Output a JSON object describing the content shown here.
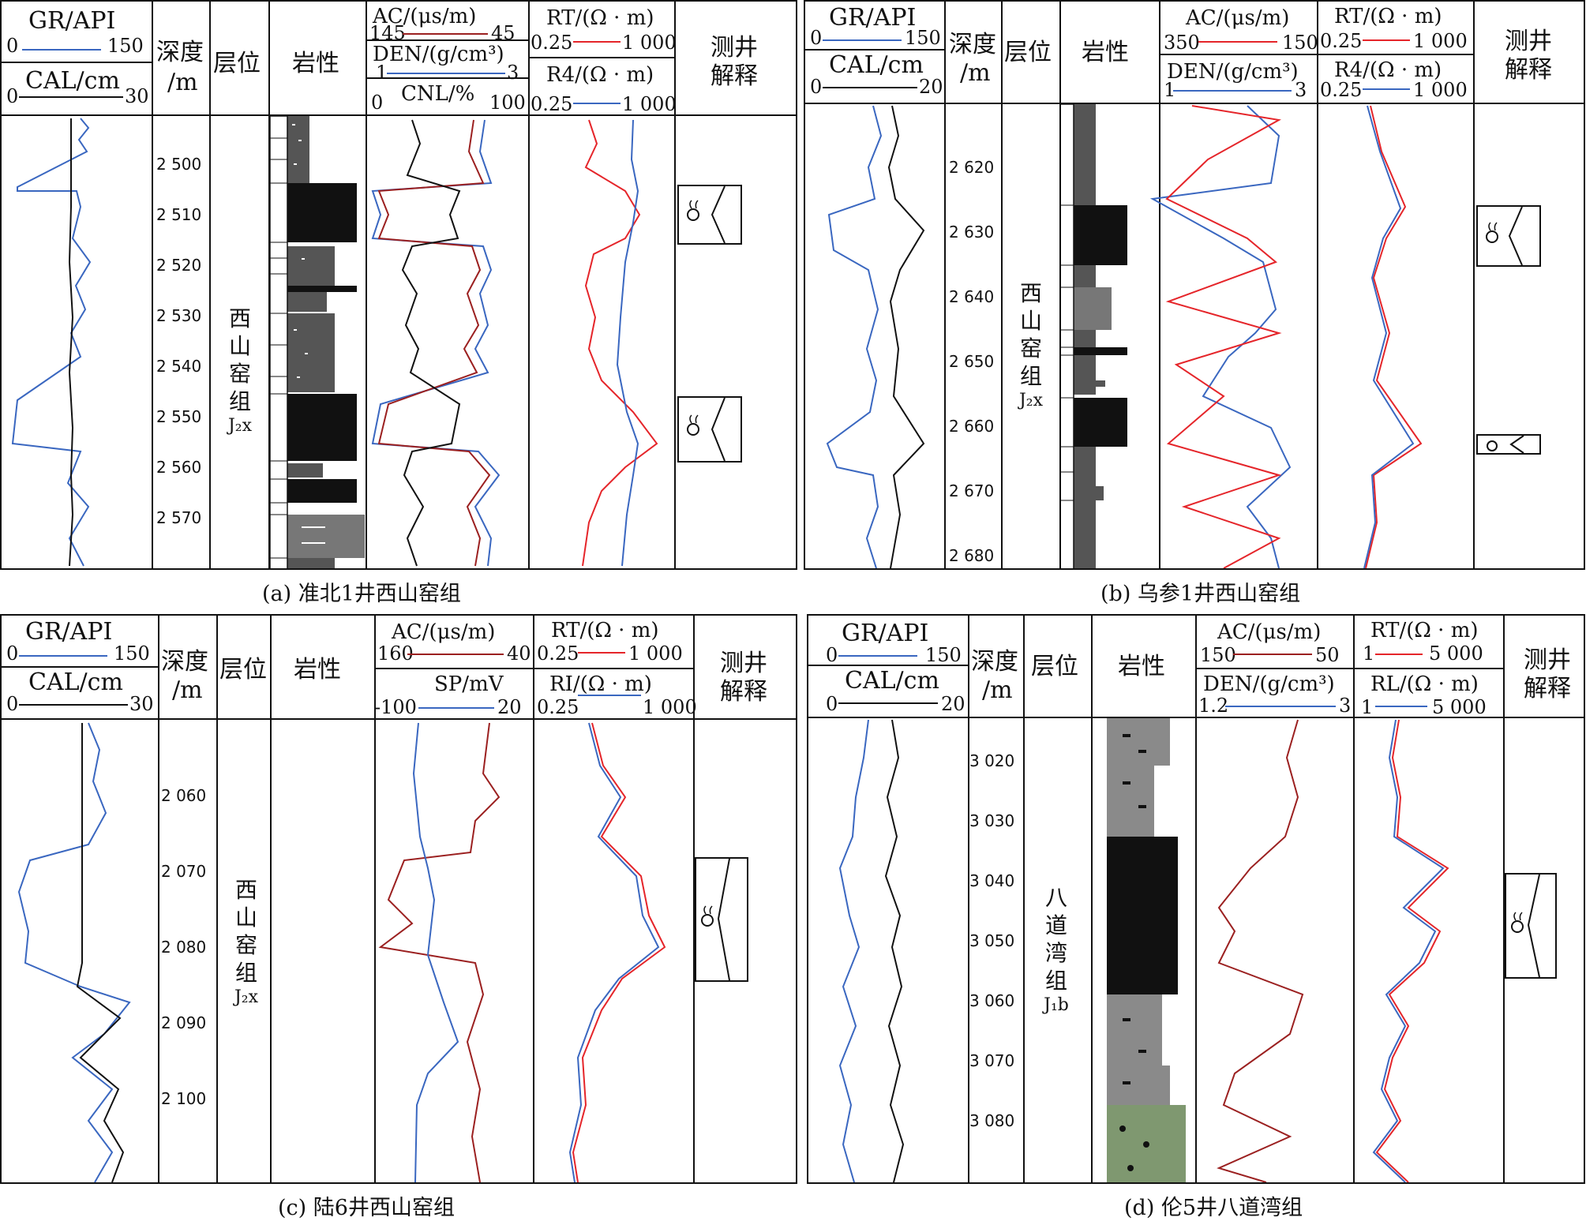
{
  "captions": {
    "a": "(a) 准北1井西山窑组",
    "b": "(b) 乌参1井西山窑组",
    "c": "(c) 陆6井西山窑组",
    "d": "(d) 伦5井八道湾组"
  },
  "colors": {
    "gr": "#3a67c0",
    "cal": "#111111",
    "rt": "#e5252a",
    "ac_dark": "#9b2020",
    "ri": "#3a67c0"
  },
  "header_common": {
    "depth": "深度",
    "depth_unit": "/m",
    "formation": "层位",
    "lithology": "岩性",
    "interp1": "测井",
    "interp2": "解释"
  },
  "a": {
    "gr": {
      "label": "GR/API",
      "min": "0",
      "max": "150"
    },
    "cal": {
      "label": "CAL/cm",
      "min": "0",
      "max": "30"
    },
    "ac": {
      "label": "AC/(μs/m)",
      "left": "145",
      "right": "45"
    },
    "den": {
      "label": "DEN/(g/cm³)",
      "left": "1",
      "right": "3"
    },
    "cnl": {
      "label": "CNL/%",
      "left": "0",
      "right": "100"
    },
    "rt": {
      "label": "RT/(Ω · m)",
      "left": "0.25",
      "right": "1 000"
    },
    "r4": {
      "label": "R4/(Ω · m)",
      "left": "0.25",
      "right": "1 000"
    },
    "depths": [
      "2 500",
      "2 510",
      "2 520",
      "2 530",
      "2 540",
      "2 550",
      "2 560",
      "2 570"
    ],
    "formation": [
      "西",
      "山",
      "窑",
      "组",
      "J₂x"
    ]
  },
  "b": {
    "gr": {
      "label": "GR/API",
      "min": "0",
      "max": "150"
    },
    "cal": {
      "label": "CAL/cm",
      "min": "0",
      "max": "20"
    },
    "ac": {
      "label": "AC/(μs/m)",
      "left": "350",
      "right": "150"
    },
    "den": {
      "label": "DEN/(g/cm³)",
      "left": "1",
      "right": "3"
    },
    "rt": {
      "label": "RT/(Ω · m)",
      "left": "0.25",
      "right": "1 000"
    },
    "r4": {
      "label": "R4/(Ω · m)",
      "left": "0.25",
      "right": "1 000"
    },
    "depths": [
      "2 620",
      "2 630",
      "2 640",
      "2 650",
      "2 660",
      "2 670",
      "2 680"
    ],
    "formation": [
      "西",
      "山",
      "窑",
      "组",
      "J₂x"
    ]
  },
  "c": {
    "gr": {
      "label": "GR/API",
      "min": "0",
      "max": "150"
    },
    "cal": {
      "label": "CAL/cm",
      "min": "0",
      "max": "30"
    },
    "ac": {
      "label": "AC/(μs/m)",
      "left": "160",
      "right": "40"
    },
    "sp": {
      "label": "SP/mV",
      "left": "-100",
      "right": "20"
    },
    "rt": {
      "label": "RT/(Ω · m)",
      "left": "0.25",
      "right": "1 000"
    },
    "ri": {
      "label": "RI/(Ω · m)",
      "left": "0.25",
      "right": "1 000"
    },
    "depths": [
      "2 060",
      "2 070",
      "2 080",
      "2 090",
      "2 100"
    ],
    "formation": [
      "西",
      "山",
      "窑",
      "组",
      "J₂x"
    ]
  },
  "d": {
    "gr": {
      "label": "GR/API",
      "min": "0",
      "max": "150"
    },
    "cal": {
      "label": "CAL/cm",
      "min": "0",
      "max": "20"
    },
    "ac": {
      "label": "AC/(μs/m)",
      "left": "150",
      "right": "50"
    },
    "den": {
      "label": "DEN/(g/cm³)",
      "left": "1.2",
      "right": "3"
    },
    "rt": {
      "label": "RT/(Ω · m)",
      "left": "1",
      "right": "5 000"
    },
    "rl": {
      "label": "RL/(Ω · m)",
      "left": "1",
      "right": "5 000"
    },
    "depths": [
      "3 020",
      "3 030",
      "3 040",
      "3 050",
      "3 060",
      "3 070",
      "3 080"
    ],
    "formation": [
      "八",
      "道",
      "湾",
      "组",
      "J₁b"
    ]
  }
}
